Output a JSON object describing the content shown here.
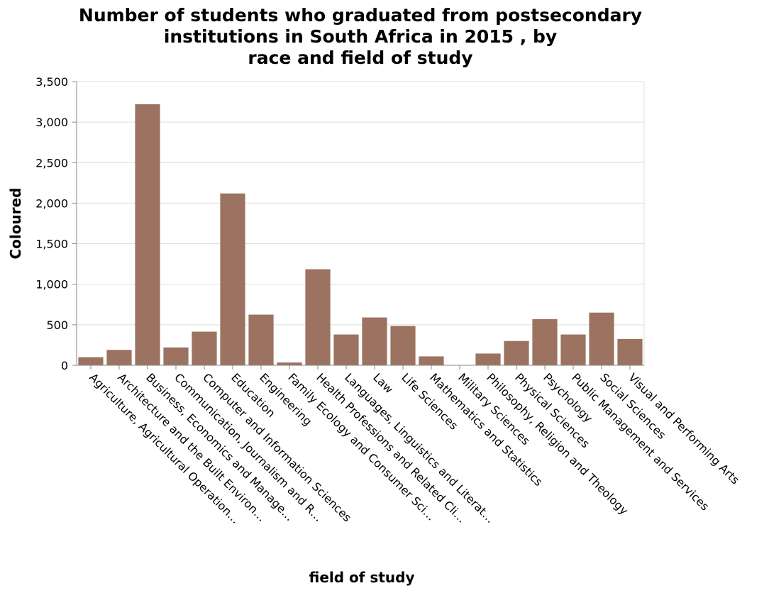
{
  "chart_data": {
    "type": "bar",
    "title": [
      "Number of students who graduated from postsecondary",
      "institutions in South Africa in 2015 , by",
      "race and field of study"
    ],
    "xlabel": "field of study",
    "ylabel": "Coloured",
    "ylim": [
      0,
      3500
    ],
    "yticks": [
      0,
      500,
      1000,
      1500,
      2000,
      2500,
      3000,
      3500
    ],
    "ytick_labels": [
      "0",
      "500",
      "1,000",
      "1,500",
      "2,000",
      "2,500",
      "3,000",
      "3,500"
    ],
    "grid": true,
    "bar_color": "#9b7360",
    "categories": [
      "Agriculture, Agricultural Operation…",
      "Architecture and the Built Environ…",
      "Business, Economics and Manage…",
      "Communication, Journalism and R…",
      "Computer and Information Sciences",
      "Education",
      "Engineering",
      "Family Ecology and Consumer Sci…",
      "Health Professions and Related Cli…",
      "Languages, Linguistics and Literat…",
      "Law",
      "Life Sciences",
      "Mathematics and Statistics",
      "Military Sciences",
      "Philosophy, Religion and Theology",
      "Physical Sciences",
      "Psychology",
      "Public Management and Services",
      "Social Sciences",
      "Visual and Performing Arts"
    ],
    "values": [
      100,
      190,
      3220,
      220,
      415,
      2120,
      625,
      35,
      1185,
      380,
      590,
      485,
      110,
      2,
      145,
      300,
      570,
      380,
      650,
      325
    ]
  }
}
